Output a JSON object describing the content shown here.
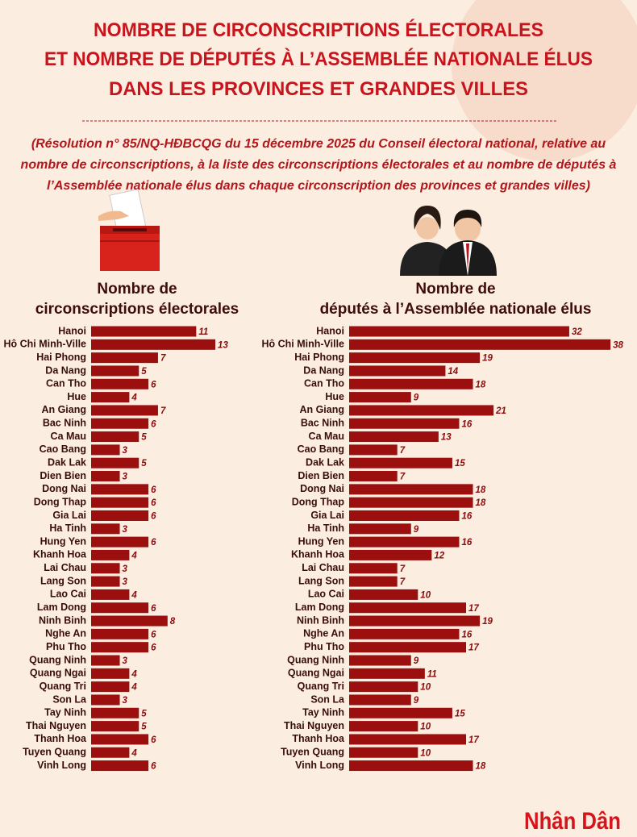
{
  "header": {
    "title": [
      "NOMBRE DE CIRCONSCRIPTIONS ÉLECTORALES",
      "ET NOMBRE DE DÉPUTÉS À L’ASSEMBLÉE NATIONALE ÉLUS",
      "DANS LES PROVINCES ET GRANDES VILLES"
    ],
    "note": "(Résolution n° 85/NQ-HĐBCQG du 15 décembre 2025 du Conseil électoral national, relative au nombre de circonscriptions, à la liste des circonscriptions électorales et au nombre de députés à l’Assemblée nationale élus dans chaque circonscription des provinces et grandes villes)",
    "brand": "Nhân Dân"
  },
  "chart_data": [
    {
      "type": "bar",
      "orientation": "horizontal",
      "title": [
        "Nombre de",
        "circonscriptions électorales"
      ],
      "color": "#9c0f0f",
      "categories": [
        "Hanoi",
        "Hô Chi Minh-Ville",
        "Hai Phong",
        "Da Nang",
        "Can Tho",
        "Hue",
        "An Giang",
        "Bac Ninh",
        "Ca Mau",
        "Cao Bang",
        "Dak Lak",
        "Dien Bien",
        "Dong Nai",
        "Dong Thap",
        "Gia Lai",
        "Ha Tinh",
        "Hung Yen",
        "Khanh Hoa",
        "Lai Chau",
        "Lang Son",
        "Lao Cai",
        "Lam Dong",
        "Ninh Binh",
        "Nghe An",
        "Phu Tho",
        "Quang Ninh",
        "Quang Ngai",
        "Quang Tri",
        "Son La",
        "Tay Ninh",
        "Thai Nguyen",
        "Thanh Hoa",
        "Tuyen Quang",
        "Vinh Long"
      ],
      "values": [
        11,
        13,
        7,
        5,
        6,
        4,
        7,
        6,
        5,
        3,
        5,
        3,
        6,
        6,
        6,
        3,
        6,
        4,
        3,
        3,
        4,
        6,
        8,
        6,
        6,
        3,
        4,
        4,
        3,
        5,
        5,
        6,
        4,
        6
      ]
    },
    {
      "type": "bar",
      "orientation": "horizontal",
      "title": [
        "Nombre de",
        "députés à l’Assemblée nationale élus"
      ],
      "color": "#9c0f0f",
      "categories": [
        "Hanoi",
        "Hô Chi Minh-Ville",
        "Hai Phong",
        "Da Nang",
        "Can Tho",
        "Hue",
        "An Giang",
        "Bac Ninh",
        "Ca Mau",
        "Cao Bang",
        "Dak Lak",
        "Dien Bien",
        "Dong Nai",
        "Dong Thap",
        "Gia Lai",
        "Ha Tinh",
        "Hung Yen",
        "Khanh Hoa",
        "Lai Chau",
        "Lang Son",
        "Lao Cai",
        "Lam Dong",
        "Ninh Binh",
        "Nghe An",
        "Phu Tho",
        "Quang Ninh",
        "Quang Ngai",
        "Quang Tri",
        "Son La",
        "Tay Ninh",
        "Thai Nguyen",
        "Thanh Hoa",
        "Tuyen Quang",
        "Vinh Long"
      ],
      "values": [
        32,
        38,
        19,
        14,
        18,
        9,
        21,
        16,
        13,
        7,
        15,
        7,
        18,
        18,
        16,
        9,
        16,
        12,
        7,
        7,
        10,
        17,
        19,
        16,
        17,
        9,
        11,
        10,
        9,
        15,
        10,
        17,
        10,
        18
      ]
    }
  ]
}
